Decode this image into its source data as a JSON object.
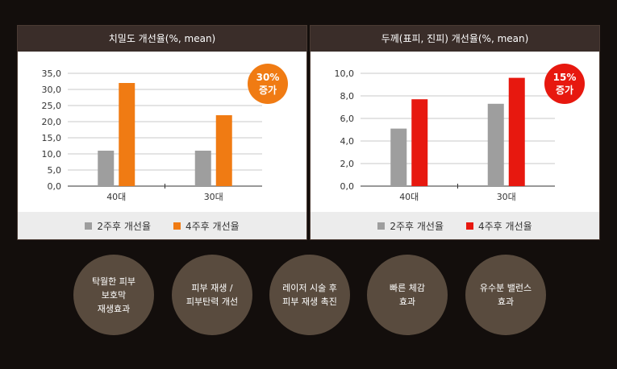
{
  "colors": {
    "gray": "#9e9e9e",
    "orange": "#f07b13",
    "red": "#e7180f"
  },
  "chart_data": [
    {
      "type": "bar",
      "title": "치밀도 개선율(%, mean)",
      "categories": [
        "40대",
        "30대"
      ],
      "series": [
        {
          "name": "2주후 개선율",
          "values": [
            11.0,
            11.0
          ]
        },
        {
          "name": "4주후 개선율",
          "values": [
            32.0,
            22.0
          ]
        }
      ],
      "ylim": [
        0,
        35
      ],
      "yticks": [
        "0,0",
        "5,0",
        "10,0",
        "15,0",
        "20,0",
        "25,0",
        "30,0",
        "35,0"
      ],
      "ystep": 5,
      "grid": true,
      "legend": "bottom",
      "badge": {
        "line1": "30%",
        "line2": "증가"
      }
    },
    {
      "type": "bar",
      "title": "두께(표피, 진피) 개선율(%, mean)",
      "categories": [
        "40대",
        "30대"
      ],
      "series": [
        {
          "name": "2주후 개선율",
          "values": [
            5.1,
            7.3
          ]
        },
        {
          "name": "4주후 개선율",
          "values": [
            7.7,
            9.6
          ]
        }
      ],
      "ylim": [
        0,
        10
      ],
      "yticks": [
        "0,0",
        "2,0",
        "4,0",
        "6,0",
        "8,0",
        "10,0"
      ],
      "ystep": 2,
      "grid": true,
      "legend": "bottom",
      "badge": {
        "line1": "15%",
        "line2": "증가"
      }
    }
  ],
  "benefits": [
    "탁월한 피부\n보호막\n재생효과",
    "피부 재생 /\n피부탄력 개선",
    "레이저 시술 후\n피부 재생 촉진",
    "빠른 체감\n효과",
    "유수분 밸런스\n효과"
  ]
}
